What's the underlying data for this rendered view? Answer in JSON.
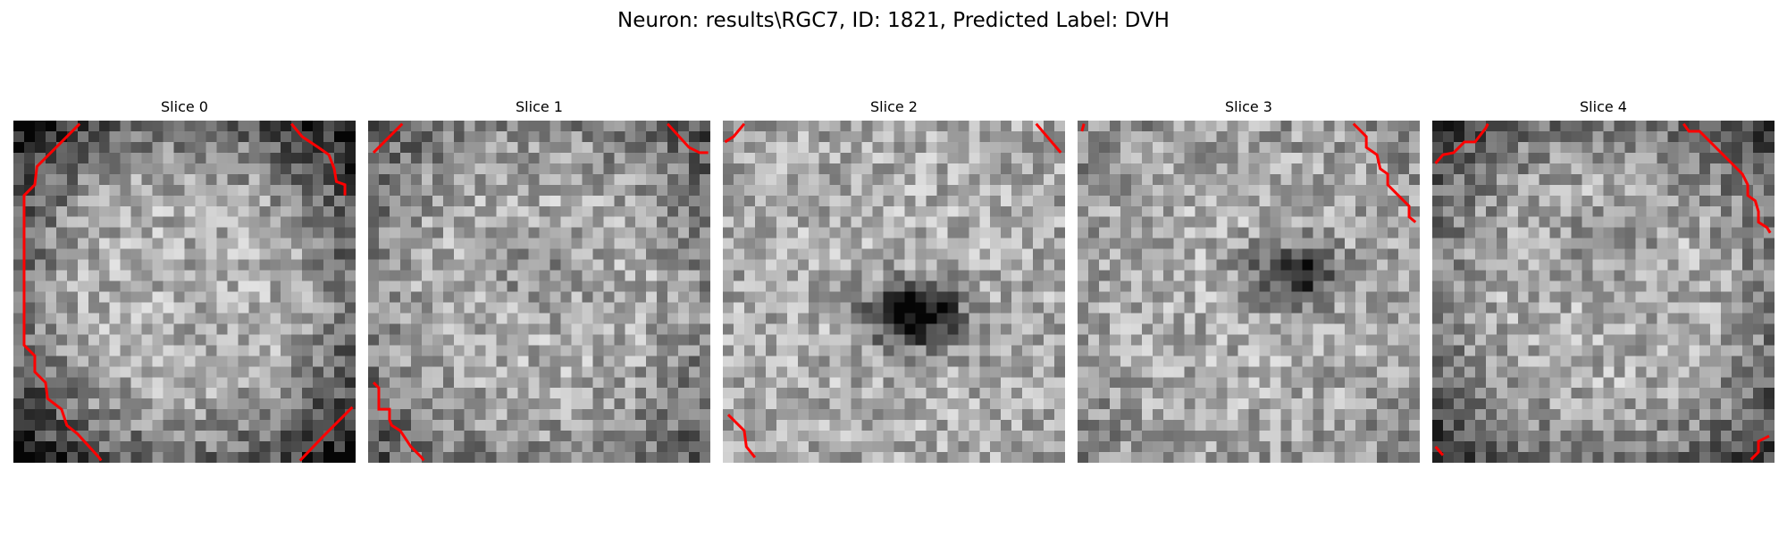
{
  "figure": {
    "title": "Neuron: results\\RGC7, ID: 1821, Predicted Label: DVH",
    "line_color": "#ff0000",
    "colormap": "gray",
    "slices": [
      {
        "label": "Slice 0",
        "dark_blob": null,
        "darkness": 0.0,
        "vignette": 0.6,
        "seed": 11
      },
      {
        "label": "Slice 1",
        "dark_blob": [
          0.52,
          0.45
        ],
        "darkness": 0.15,
        "vignette": 0.35,
        "seed": 23
      },
      {
        "label": "Slice 2",
        "dark_blob": [
          0.56,
          0.57
        ],
        "darkness": 0.75,
        "vignette": 0.05,
        "seed": 37
      },
      {
        "label": "Slice 3",
        "dark_blob": [
          0.64,
          0.45
        ],
        "darkness": 0.55,
        "vignette": 0.15,
        "seed": 41
      },
      {
        "label": "Slice 4",
        "dark_blob": [
          0.5,
          0.35
        ],
        "darkness": 0.15,
        "vignette": 0.45,
        "seed": 53
      }
    ]
  }
}
